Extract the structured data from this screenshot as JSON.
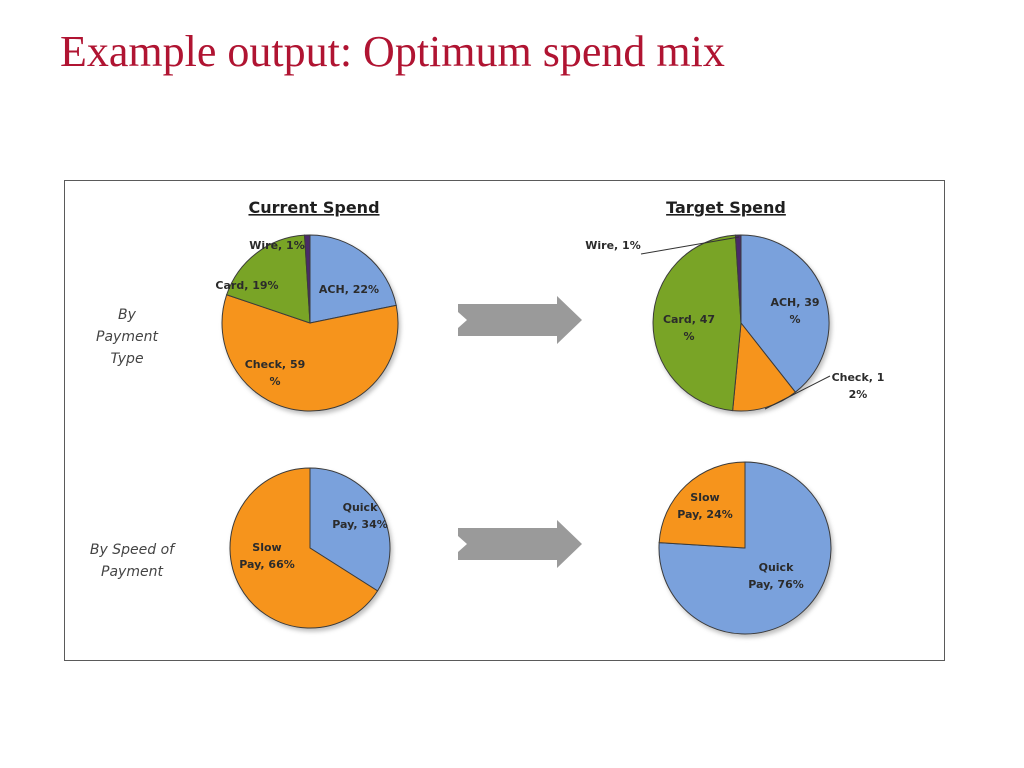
{
  "title": "Example output: Optimum spend mix",
  "row_labels": {
    "payment_type": [
      "By",
      "Payment",
      "Type"
    ],
    "speed": [
      "By Speed of",
      "Payment"
    ]
  },
  "colors": {
    "ACH": "#7aa1dc",
    "Card": "#79a425",
    "Check": "#f6941e",
    "Wire": "#4a2a6a",
    "Quick Pay": "#7aa1dc",
    "Slow Pay": "#f6941e",
    "arrow": "#9a9a9a",
    "title": "#b01432"
  },
  "chart_data": [
    {
      "type": "pie",
      "title": "Current Spend",
      "row": "By Payment Type",
      "slices": [
        {
          "label": "ACH",
          "value": 22,
          "label_lines": [
            "ACH, 22%"
          ]
        },
        {
          "label": "Check",
          "value": 59,
          "label_lines": [
            "Check, 59",
            "%"
          ]
        },
        {
          "label": "Card",
          "value": 19,
          "label_lines": [
            "Card, 19%"
          ]
        },
        {
          "label": "Wire",
          "value": 1,
          "label_lines": [
            "Wire, 1%"
          ]
        }
      ]
    },
    {
      "type": "pie",
      "title": "Target Spend",
      "row": "By Payment Type",
      "slices": [
        {
          "label": "ACH",
          "value": 39,
          "label_lines": [
            "ACH, 39",
            "%"
          ]
        },
        {
          "label": "Check",
          "value": 12,
          "label_lines": [
            "Check, 1",
            "2%"
          ]
        },
        {
          "label": "Card",
          "value": 47,
          "label_lines": [
            "Card, 47",
            "%"
          ]
        },
        {
          "label": "Wire",
          "value": 1,
          "label_lines": [
            "Wire, 1%"
          ]
        }
      ]
    },
    {
      "type": "pie",
      "title": "",
      "row": "By Speed of Payment",
      "slices": [
        {
          "label": "Quick Pay",
          "value": 34,
          "label_lines": [
            "Quick",
            "Pay, 34%"
          ]
        },
        {
          "label": "Slow Pay",
          "value": 66,
          "label_lines": [
            "Slow",
            "Pay, 66%"
          ]
        }
      ]
    },
    {
      "type": "pie",
      "title": "",
      "row": "By Speed of Payment",
      "slices": [
        {
          "label": "Quick Pay",
          "value": 76,
          "label_lines": [
            "Quick",
            "Pay, 76%"
          ]
        },
        {
          "label": "Slow Pay",
          "value": 24,
          "label_lines": [
            "Slow",
            "Pay, 24%"
          ]
        }
      ]
    }
  ]
}
